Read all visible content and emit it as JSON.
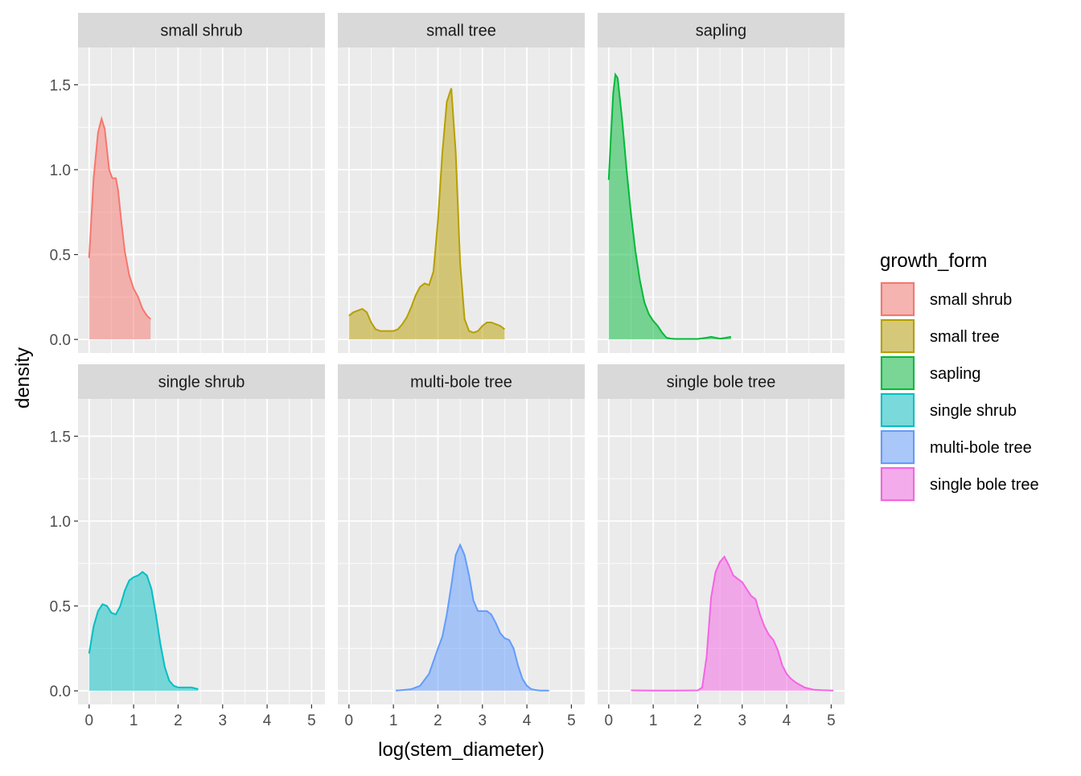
{
  "chart_data": {
    "type": "area",
    "subtype": "faceted density",
    "title": "",
    "xlabel": "log(stem_diameter)",
    "ylabel": "density",
    "xlim": [
      -0.25,
      5.3
    ],
    "ylim": [
      -0.08,
      1.72
    ],
    "x_ticks": [
      0,
      1,
      2,
      3,
      4,
      5
    ],
    "y_ticks": [
      0.0,
      0.5,
      1.0,
      1.5
    ],
    "x_tick_labels": [
      "0",
      "1",
      "2",
      "3",
      "4",
      "5"
    ],
    "y_tick_labels": [
      "0.0",
      "0.5",
      "1.0",
      "1.5"
    ],
    "grid": true,
    "facet_rows": 2,
    "facet_cols": 3,
    "legend": {
      "title": "growth_form",
      "position": "right",
      "entries": [
        "small shrub",
        "small tree",
        "sapling",
        "single shrub",
        "multi-bole tree",
        "single bole tree"
      ]
    },
    "series": [
      {
        "name": "small shrub",
        "color": "#F8766D",
        "x": [
          0.0,
          0.1,
          0.2,
          0.28,
          0.35,
          0.45,
          0.52,
          0.6,
          0.65,
          0.72,
          0.8,
          0.9,
          1.0,
          1.1,
          1.2,
          1.3,
          1.38
        ],
        "y": [
          0.48,
          0.95,
          1.22,
          1.3,
          1.24,
          1.0,
          0.95,
          0.95,
          0.88,
          0.7,
          0.52,
          0.38,
          0.3,
          0.25,
          0.18,
          0.14,
          0.12
        ]
      },
      {
        "name": "small tree",
        "color": "#B79F00",
        "x": [
          0.0,
          0.1,
          0.2,
          0.3,
          0.4,
          0.5,
          0.6,
          0.7,
          0.8,
          0.9,
          1.0,
          1.1,
          1.2,
          1.3,
          1.4,
          1.5,
          1.6,
          1.7,
          1.8,
          1.9,
          2.0,
          2.1,
          2.2,
          2.3,
          2.4,
          2.5,
          2.6,
          2.7,
          2.8,
          2.9,
          3.0,
          3.1,
          3.2,
          3.3,
          3.4,
          3.5
        ],
        "y": [
          0.14,
          0.16,
          0.17,
          0.18,
          0.16,
          0.1,
          0.06,
          0.05,
          0.05,
          0.05,
          0.05,
          0.06,
          0.09,
          0.13,
          0.19,
          0.26,
          0.31,
          0.33,
          0.32,
          0.4,
          0.7,
          1.1,
          1.4,
          1.48,
          1.1,
          0.45,
          0.12,
          0.05,
          0.04,
          0.05,
          0.08,
          0.1,
          0.1,
          0.09,
          0.08,
          0.06
        ]
      },
      {
        "name": "sapling",
        "color": "#00BA38",
        "x": [
          0.0,
          0.05,
          0.1,
          0.15,
          0.2,
          0.3,
          0.4,
          0.5,
          0.6,
          0.7,
          0.8,
          0.9,
          1.0,
          1.1,
          1.2,
          1.3,
          1.4,
          1.5,
          1.6,
          1.8,
          2.0,
          2.2,
          2.3,
          2.4,
          2.5,
          2.6,
          2.75
        ],
        "y": [
          0.94,
          1.2,
          1.45,
          1.56,
          1.54,
          1.3,
          1.0,
          0.74,
          0.52,
          0.35,
          0.22,
          0.15,
          0.11,
          0.08,
          0.04,
          0.01,
          0.005,
          0.003,
          0.003,
          0.003,
          0.003,
          0.01,
          0.015,
          0.01,
          0.005,
          0.008,
          0.015
        ]
      },
      {
        "name": "single shrub",
        "color": "#00BFC4",
        "x": [
          0.0,
          0.1,
          0.2,
          0.3,
          0.4,
          0.5,
          0.6,
          0.7,
          0.8,
          0.9,
          1.0,
          1.1,
          1.2,
          1.3,
          1.4,
          1.5,
          1.6,
          1.7,
          1.8,
          1.9,
          2.0,
          2.1,
          2.2,
          2.3,
          2.45
        ],
        "y": [
          0.22,
          0.38,
          0.47,
          0.51,
          0.5,
          0.46,
          0.45,
          0.5,
          0.59,
          0.65,
          0.67,
          0.68,
          0.7,
          0.68,
          0.6,
          0.45,
          0.28,
          0.14,
          0.06,
          0.03,
          0.02,
          0.02,
          0.02,
          0.02,
          0.01
        ]
      },
      {
        "name": "multi-bole tree",
        "color": "#619CFF",
        "x": [
          1.05,
          1.2,
          1.4,
          1.6,
          1.8,
          2.0,
          2.1,
          2.2,
          2.3,
          2.4,
          2.5,
          2.6,
          2.7,
          2.8,
          2.9,
          3.0,
          3.1,
          3.2,
          3.3,
          3.4,
          3.5,
          3.6,
          3.7,
          3.8,
          3.9,
          4.0,
          4.1,
          4.2,
          4.3,
          4.5
        ],
        "y": [
          0.002,
          0.005,
          0.01,
          0.03,
          0.1,
          0.25,
          0.32,
          0.45,
          0.62,
          0.8,
          0.86,
          0.8,
          0.68,
          0.53,
          0.47,
          0.47,
          0.47,
          0.45,
          0.4,
          0.34,
          0.31,
          0.3,
          0.25,
          0.15,
          0.07,
          0.03,
          0.01,
          0.005,
          0.002,
          0.002
        ]
      },
      {
        "name": "single bole tree",
        "color": "#F564E3",
        "x": [
          0.5,
          1.0,
          1.5,
          2.0,
          2.1,
          2.2,
          2.3,
          2.4,
          2.5,
          2.6,
          2.7,
          2.8,
          2.9,
          3.0,
          3.1,
          3.2,
          3.3,
          3.4,
          3.5,
          3.6,
          3.7,
          3.8,
          3.9,
          4.0,
          4.1,
          4.2,
          4.4,
          4.6,
          4.8,
          5.05
        ],
        "y": [
          0.003,
          0.002,
          0.002,
          0.003,
          0.02,
          0.2,
          0.55,
          0.7,
          0.76,
          0.79,
          0.74,
          0.68,
          0.66,
          0.64,
          0.6,
          0.56,
          0.54,
          0.45,
          0.38,
          0.33,
          0.3,
          0.24,
          0.15,
          0.1,
          0.07,
          0.05,
          0.02,
          0.007,
          0.004,
          0.002
        ]
      }
    ]
  }
}
